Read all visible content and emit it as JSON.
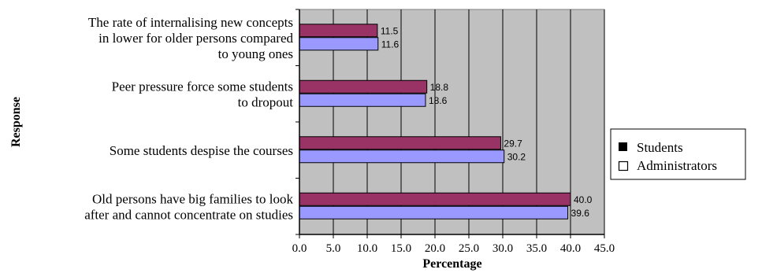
{
  "chart_data": {
    "type": "bar",
    "orientation": "horizontal",
    "categories": [
      [
        "The rate of internalising new concepts",
        "in lower for older persons compared",
        "to young ones"
      ],
      [
        "Peer pressure force some students",
        "to dropout"
      ],
      [
        "Some students despise the courses"
      ],
      [
        "Old persons have big families to look",
        "after and cannot concentrate on studies"
      ]
    ],
    "series": [
      {
        "name": "Students",
        "values": [
          11.5,
          18.8,
          29.7,
          40.0
        ],
        "value_labels": [
          "11.5",
          "18.8",
          "29.7",
          "40.0"
        ],
        "color": "#993366"
      },
      {
        "name": "Administrators",
        "values": [
          11.6,
          18.6,
          30.2,
          39.6
        ],
        "value_labels": [
          "11.6",
          "18.6",
          "30.2",
          "39.6"
        ],
        "color": "#9999ff"
      }
    ],
    "xlabel": "Percentage",
    "ylabel": "Response",
    "xlim": [
      0,
      45
    ],
    "xticks": [
      "0.0",
      "5.0",
      "10.0",
      "15.0",
      "20.0",
      "25.0",
      "30.0",
      "35.0",
      "40.0",
      "45.0"
    ],
    "grid": true,
    "plot_background": "#c0c0c0",
    "legend_position": "right",
    "legend": [
      {
        "label": "Students",
        "marker": "filled-square"
      },
      {
        "label": "Administrators",
        "marker": "empty-square"
      }
    ]
  }
}
